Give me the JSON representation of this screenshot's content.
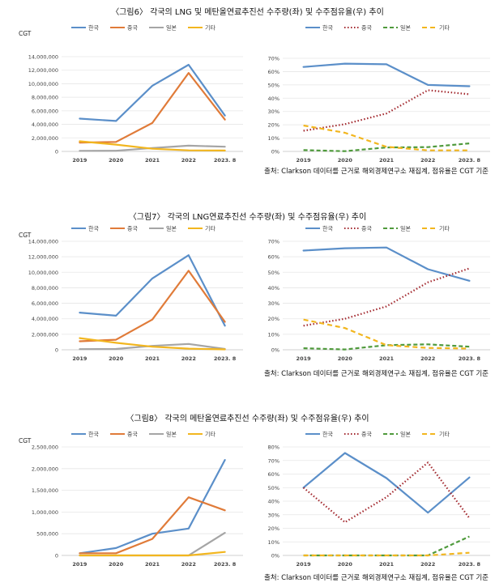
{
  "figures": [
    {
      "title": "〈그림6〉 각국의 LNG 및 메탄올연료추진선 수주량(좌) 및 수주점유율(우) 추이",
      "source": "출처: Clarkson 데이터를 근거로 해외경제연구소 재집계, 점유율은 CGT 기준"
    },
    {
      "title": "〈그림7〉 각국의 LNG연료추진선 수주량(좌) 및 수주점유율(우) 추이",
      "source": "출처: Clarkson 데이터를 근거로 해외경제연구소 재집계, 점유율은 CGT 기준"
    },
    {
      "title": "〈그림8〉 각국의 메탄올연료추진선 수주량(좌) 및 수주점유율(우) 추이",
      "source": "출처: Clarkson 데이터를 근거로 해외경제연구소 재집계, 점유율은 CGT 기준"
    }
  ],
  "colors": {
    "한국": "#5b8fc9",
    "중국_left": "#e07b39",
    "중국_right": "#a3292f",
    "일본_left": "#a5a5a5",
    "일본_right": "#4f9a3c",
    "기타": "#f2b61f"
  },
  "chart_data": [
    {
      "type": "line",
      "side": "left",
      "unit": "CGT",
      "categories": [
        "2019",
        "2020",
        "2021",
        "2022",
        "2023. 8"
      ],
      "yticks": [
        "0",
        "2,000,000",
        "4,000,000",
        "6,000,000",
        "8,000,000",
        "10,000,000",
        "12,000,000",
        "14,000,000"
      ],
      "ylim": [
        0,
        14000000
      ],
      "series": [
        {
          "name": "한국",
          "values": [
            4850000,
            4500000,
            9700000,
            12800000,
            5300000
          ]
        },
        {
          "name": "중국",
          "values": [
            1300000,
            1400000,
            4200000,
            11600000,
            4700000
          ]
        },
        {
          "name": "일본",
          "values": [
            80000,
            100000,
            500000,
            850000,
            700000
          ]
        },
        {
          "name": "기타",
          "values": [
            1500000,
            1000000,
            400000,
            150000,
            130000
          ]
        }
      ]
    },
    {
      "type": "line",
      "side": "right",
      "categories": [
        "2019",
        "2020",
        "2021",
        "2022",
        "2023. 8"
      ],
      "yticks": [
        "0%",
        "10%",
        "20%",
        "30%",
        "40%",
        "50%",
        "60%",
        "70%"
      ],
      "ylim": [
        0,
        70
      ],
      "series": [
        {
          "name": "한국",
          "values": [
            63.5,
            66,
            65.5,
            50,
            49
          ]
        },
        {
          "name": "중국",
          "values": [
            15.5,
            20.5,
            28.5,
            46,
            43
          ]
        },
        {
          "name": "일본",
          "values": [
            1,
            0.2,
            3,
            3.2,
            6
          ]
        },
        {
          "name": "기타",
          "values": [
            19.5,
            14,
            3.5,
            0.8,
            0.8
          ]
        }
      ]
    },
    {
      "type": "line",
      "side": "left",
      "unit": "CGT",
      "categories": [
        "2019",
        "2020",
        "2021",
        "2022",
        "2023. 8"
      ],
      "yticks": [
        "0",
        "2,000,000",
        "4,000,000",
        "6,000,000",
        "8,000,000",
        "10,000,000",
        "12,000,000",
        "14,000,000"
      ],
      "ylim": [
        0,
        14000000
      ],
      "series": [
        {
          "name": "한국",
          "values": [
            4800000,
            4400000,
            9200000,
            12200000,
            3100000
          ]
        },
        {
          "name": "중국",
          "values": [
            1100000,
            1300000,
            3900000,
            10200000,
            3600000
          ]
        },
        {
          "name": "일본",
          "values": [
            80000,
            100000,
            500000,
            750000,
            100000
          ]
        },
        {
          "name": "기타",
          "values": [
            1500000,
            900000,
            400000,
            150000,
            50000
          ]
        }
      ]
    },
    {
      "type": "line",
      "side": "right",
      "categories": [
        "2019",
        "2020",
        "2021",
        "2022",
        "2023. 8"
      ],
      "yticks": [
        "0%",
        "10%",
        "20%",
        "30%",
        "40%",
        "50%",
        "60%",
        "70%"
      ],
      "ylim": [
        0,
        70
      ],
      "series": [
        {
          "name": "한국",
          "values": [
            64,
            65.5,
            66,
            52,
            44.5
          ]
        },
        {
          "name": "중국",
          "values": [
            15.5,
            20,
            28,
            43.5,
            52.5
          ]
        },
        {
          "name": "일본",
          "values": [
            1,
            0.2,
            3,
            3.5,
            2
          ]
        },
        {
          "name": "기타",
          "values": [
            19.5,
            14,
            3,
            1.2,
            0.8
          ]
        }
      ]
    },
    {
      "type": "line",
      "side": "left",
      "unit": "CGT",
      "categories": [
        "2019",
        "2020",
        "2021",
        "2022",
        "2023. 8"
      ],
      "yticks": [
        "0",
        "500,000",
        "1,000,000",
        "1,500,000",
        "2,000,000",
        "2,500,000"
      ],
      "ylim": [
        0,
        2500000
      ],
      "series": [
        {
          "name": "한국",
          "values": [
            50000,
            170000,
            500000,
            620000,
            2200000
          ]
        },
        {
          "name": "중국",
          "values": [
            50000,
            50000,
            380000,
            1340000,
            1040000
          ]
        },
        {
          "name": "일본",
          "values": [
            0,
            0,
            0,
            0,
            520000
          ]
        },
        {
          "name": "기타",
          "values": [
            0,
            0,
            0,
            0,
            80000
          ]
        }
      ]
    },
    {
      "type": "line",
      "side": "right",
      "categories": [
        "2019",
        "2020",
        "2021",
        "2022",
        "2023. 8"
      ],
      "yticks": [
        "0%",
        "10%",
        "20%",
        "30%",
        "40%",
        "50%",
        "60%",
        "70%",
        "80%"
      ],
      "ylim": [
        0,
        80
      ],
      "series": [
        {
          "name": "한국",
          "values": [
            50,
            75.5,
            57,
            31.5,
            57.5
          ]
        },
        {
          "name": "중국",
          "values": [
            50,
            24.5,
            43,
            68.5,
            27.5
          ]
        },
        {
          "name": "일본",
          "values": [
            0,
            0,
            0,
            0,
            14
          ]
        },
        {
          "name": "기타",
          "values": [
            0,
            0,
            0,
            0,
            2
          ]
        }
      ]
    }
  ]
}
